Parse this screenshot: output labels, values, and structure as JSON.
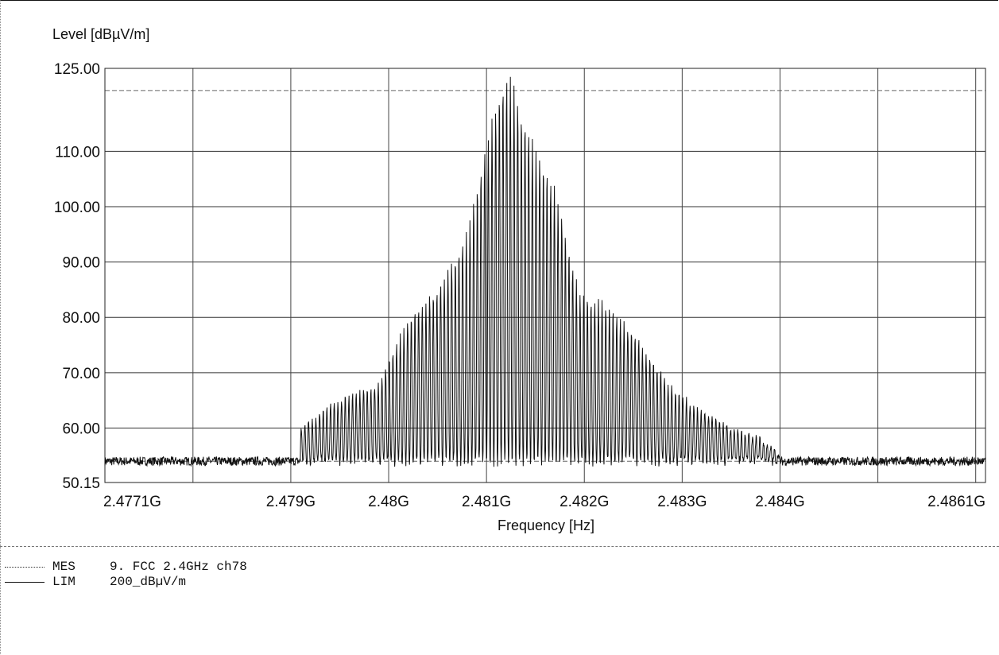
{
  "chart_data": {
    "type": "line",
    "ylabel": "Level [dBµV/m]",
    "xlabel": "Frequency [Hz]",
    "ylim": [
      50.15,
      125.0
    ],
    "xlim": [
      2477100000.0,
      2486100000.0
    ],
    "y_tick_labels": [
      {
        "value": 125.0,
        "label": "125.00"
      },
      {
        "value": 110.0,
        "label": "110.00"
      },
      {
        "value": 100.0,
        "label": "100.00"
      },
      {
        "value": 90.0,
        "label": "90.00"
      },
      {
        "value": 80.0,
        "label": "80.00"
      },
      {
        "value": 70.0,
        "label": "70.00"
      },
      {
        "value": 60.0,
        "label": "60.00"
      },
      {
        "value": 50.15,
        "label": "50.15"
      }
    ],
    "x_tick_labels": [
      {
        "value": 2477100000.0,
        "label": "2.4771G"
      },
      {
        "value": 2479000000.0,
        "label": "2.479G"
      },
      {
        "value": 2480000000.0,
        "label": "2.48G"
      },
      {
        "value": 2481000000.0,
        "label": "2.481G"
      },
      {
        "value": 2482000000.0,
        "label": "2.482G"
      },
      {
        "value": 2483000000.0,
        "label": "2.483G"
      },
      {
        "value": 2484000000.0,
        "label": "2.484G"
      },
      {
        "value": 2486100000.0,
        "label": "2.4861G"
      }
    ],
    "y_gridlines": [
      121.0,
      110.0,
      100.0,
      90.0,
      80.0,
      70.0,
      60.0,
      54.0
    ],
    "x_gridlines": [
      2478000000.0,
      2479000000.0,
      2480000000.0,
      2481000000.0,
      2482000000.0,
      2483000000.0,
      2484000000.0,
      2485000000.0,
      2486000000.0
    ],
    "series": [
      {
        "name": "MES",
        "style": "solid",
        "color": "#111111",
        "peak_frequencies_hz": [
          2479100000.0,
          2479500000.0,
          2479900000.0,
          2480200000.0,
          2480500000.0,
          2480800000.0,
          2481050000.0,
          2481150000.0,
          2481250000.0,
          2481400000.0,
          2481700000.0,
          2481950000.0,
          2482250000.0,
          2482550000.0,
          2482900000.0,
          2483200000.0,
          2483500000.0,
          2483800000.0,
          2484000000.0
        ],
        "peak_levels_dbuv_m": [
          60.0,
          65.0,
          68.0,
          80.0,
          85.0,
          95.0,
          115.0,
          122.5,
          123.0,
          115.0,
          103.0,
          84.0,
          82.0,
          76.0,
          67.0,
          63.0,
          60.0,
          58.0,
          55.0
        ],
        "noise_floor_dbuv_m": 54.0
      }
    ],
    "legend": [
      {
        "style": "dotted",
        "code": "MES",
        "text": "9. FCC 2.4GHz ch78"
      },
      {
        "style": "solid",
        "code": "LIM",
        "text": "200_dBµV/m"
      }
    ],
    "grid": true
  }
}
